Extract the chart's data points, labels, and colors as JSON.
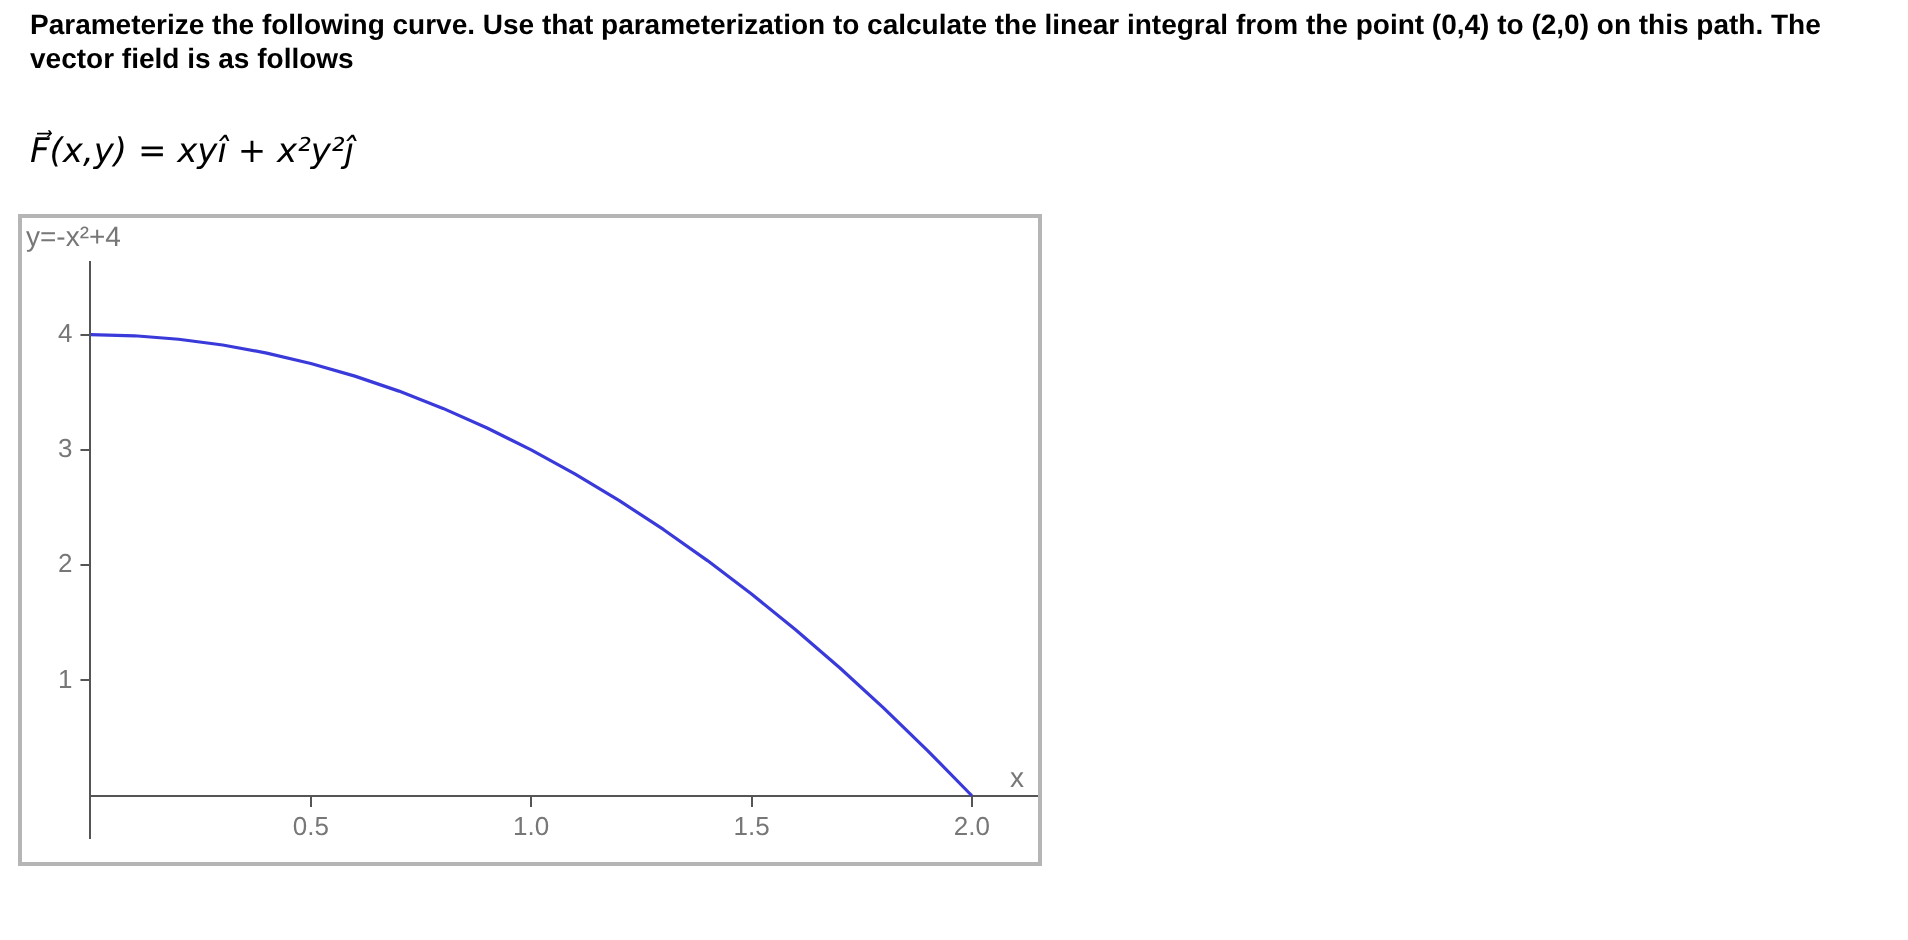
{
  "chart_data": {
    "type": "line",
    "title": "Parameterize the following curve. Use that parameterization to calculate the linear integral from the point (0,4) to (2,0) on this path. The vector field is as follows",
    "subtitle": "F⃗(x,y) = xyî + x²y²ĵ",
    "xlabel": "x",
    "ylabel": "y=-x²+4",
    "x": [
      0,
      0.1,
      0.2,
      0.3,
      0.4,
      0.5,
      0.6,
      0.7,
      0.8,
      0.9,
      1,
      1.1,
      1.2,
      1.3,
      1.4,
      1.5,
      1.6,
      1.7,
      1.8,
      1.9,
      2
    ],
    "series": [
      {
        "color": "#3a3adb",
        "values": [
          4,
          3.99,
          3.96,
          3.91,
          3.84,
          3.75,
          3.64,
          3.51,
          3.36,
          3.19,
          3,
          2.79,
          2.56,
          2.31,
          2.04,
          1.75,
          1.44,
          1.11,
          0.76,
          0.39,
          0
        ]
      }
    ],
    "xlim": [
      0,
      2.15
    ],
    "ylim": [
      -0.37,
      4.63
    ],
    "xticks": [
      0.5,
      {
        "value": 1,
        "label": "1.0"
      },
      1.5,
      {
        "value": 2,
        "label": "2.0"
      }
    ],
    "yticks": [
      1,
      2,
      3,
      4
    ],
    "grid": false,
    "legend": false,
    "marker": "none",
    "line_style": "solid"
  }
}
